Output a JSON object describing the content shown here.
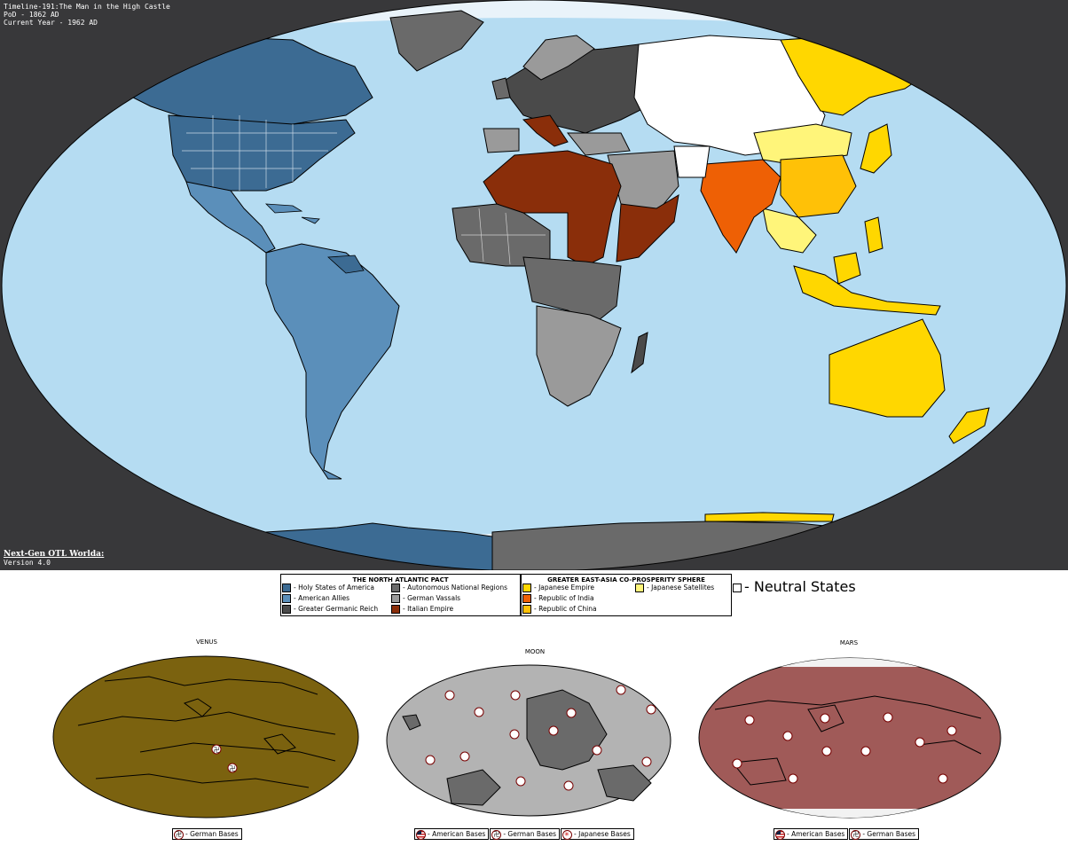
{
  "header": {
    "line1": "Timeline-191:The Man in the High Castle",
    "line2": "PoD - 1862 AD",
    "line3": "Current Year - 1962 AD"
  },
  "signature": {
    "title": "Next-Gen OTL Worlda:",
    "version": "Version 4.0"
  },
  "colors": {
    "ocean": "#b5dcf2",
    "background": "#38383a",
    "ice": "#e9f3fa",
    "holy_states": "#3c6b93",
    "american_allies": "#5b8fba",
    "greater_germanic_reich": "#4a4a4a",
    "autonomous_regions": "#6a6a6a",
    "german_vassals": "#9a9a9a",
    "italian_empire": "#8a2e0a",
    "japanese_empire": "#ffd700",
    "japanese_satellites": "#fff57a",
    "republic_of_india": "#ee6005",
    "republic_of_china": "#ffc107",
    "neutral": "#ffffff",
    "venus": "#7b620f",
    "moon": "#b3b3b3",
    "mars": "#a05a58"
  },
  "legend": {
    "pact": {
      "title": "THE NORTH ATLANTIC PACT",
      "items": [
        {
          "label": "- Holy States of America",
          "color": "#3c6b93"
        },
        {
          "label": "- American Allies",
          "color": "#5b8fba"
        },
        {
          "label": "- Greater Germanic Reich",
          "color": "#4a4a4a"
        },
        {
          "label": "- Autonomous National Regions",
          "color": "#6a6a6a"
        },
        {
          "label": "- German Vassals",
          "color": "#9a9a9a"
        },
        {
          "label": "- Italian Empire",
          "color": "#8a2e0a"
        }
      ]
    },
    "sphere": {
      "title": "GREATER EAST-ASIA CO-PROSPERITY SPHERE",
      "items": [
        {
          "label": "- Japanese Empire",
          "color": "#ffd700"
        },
        {
          "label": "- Republic of India",
          "color": "#ee6005"
        },
        {
          "label": "- Republic of China",
          "color": "#ffc107"
        },
        {
          "label": "- Japanese Satellites",
          "color": "#fff57a"
        }
      ]
    },
    "neutral": {
      "label": "- Neutral States",
      "color": "#ffffff"
    }
  },
  "planets": {
    "venus": {
      "title": "VENUS",
      "legend": [
        "- German Bases"
      ]
    },
    "moon": {
      "title": "MOON",
      "legend": [
        "- American Bases",
        "- German Bases",
        "- Japanese Bases"
      ]
    },
    "mars": {
      "title": "MARS",
      "legend": [
        "- American Bases",
        "- German Bases"
      ]
    }
  }
}
